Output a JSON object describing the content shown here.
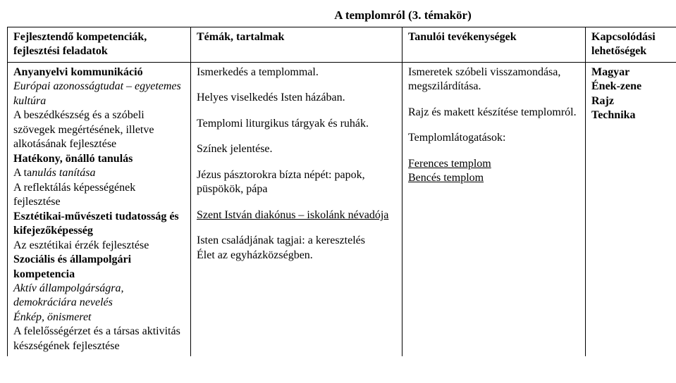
{
  "title": "A templomról (3. témakör)",
  "headers": {
    "c1": "Fejlesztendő kompetenciák, fejlesztési feladatok",
    "c2": "Témák, tartalmak",
    "c3": "Tanulói tevékenységek",
    "c4": "Kapcsolódási lehetőségek"
  },
  "col1": {
    "l1": "Anyanyelvi kommunikáció",
    "l2": "Európai azonosságtudat – egyetemes kultúra",
    "l3": "A beszédkészség és a szóbeli szövegek megértésének, illetve alkotásának fejlesztése",
    "l4": "Hatékony, önálló tanulás",
    "l5a": "A ta",
    "l5b": "nulás tanítása",
    "l6": "A reflektálás képességének fejlesztése",
    "l7": "Esztétikai-művészeti tudatosság és kifejezőképesség",
    "l8": "Az esztétikai érzék fejlesztése",
    "l9": "Szociális és állampolgári kompetencia",
    "l10": "Aktív állampolgárságra, demokráciára nevelés",
    "l11": "Énkép, önismeret",
    "l12": "A felelősségérzet és a társas aktivitás készségének fejlesztése"
  },
  "col2": {
    "l1": "Ismerkedés a templommal.",
    "l2": "Helyes viselkedés Isten házában.",
    "l3": "Templomi liturgikus tárgyak és ruhák.",
    "l4": "Színek jelentése.",
    "l5": "Jézus pásztorokra bízta népét: papok, püspökök, pápa",
    "l6": "Szent István diakónus – iskolánk névadója",
    "l7": "Isten családjának tagjai: a keresztelés",
    "l8": "Élet az egyházközségben."
  },
  "col3": {
    "l1": "Ismeretek szóbeli visszamondása, megszilárdítása.",
    "l2": "Rajz és makett készítése templomról.",
    "l3": "Templomlátogatások:",
    "l4": "Ferences templom",
    "l5": "Bencés templom"
  },
  "col4": {
    "l1": "Magyar",
    "l2": "Ének-zene",
    "l3": "Rajz",
    "l4": "Technika"
  }
}
